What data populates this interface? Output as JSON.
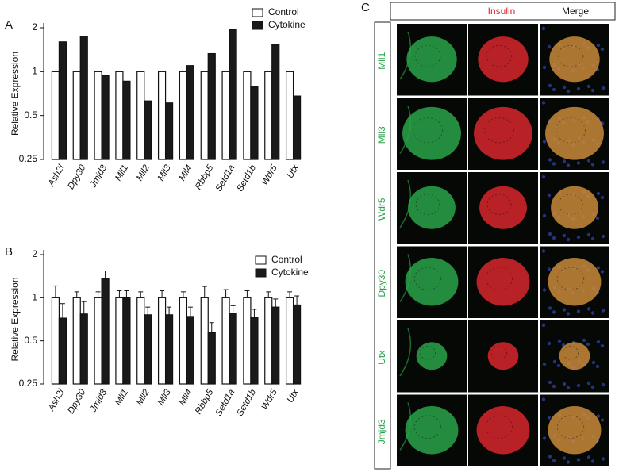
{
  "panel_labels": [
    "A",
    "B",
    "C"
  ],
  "chart_data": [
    {
      "type": "bar",
      "ylabel": "Relative Expression",
      "log_scale": true,
      "base": 2,
      "categories": [
        "Ash2l",
        "Dpy30",
        "Jmjd3",
        "Mll1",
        "Mll2",
        "Mll3",
        "Mll4",
        "Rbbp5",
        "Setd1a",
        "Setd1b",
        "Wdr5",
        "Utx"
      ],
      "series": [
        {
          "name": "Control",
          "color": "#ffffff",
          "values": [
            1,
            1,
            1,
            1,
            1,
            1,
            1,
            1,
            1,
            1,
            1,
            1
          ]
        },
        {
          "name": "Cytokine",
          "color": "#1a1a1a",
          "values": [
            1.6,
            1.75,
            0.94,
            0.86,
            0.63,
            0.61,
            1.1,
            1.33,
            1.95,
            0.79,
            1.54,
            0.68
          ]
        }
      ],
      "ylim": [
        0.25,
        2
      ],
      "yticks": [
        0.25,
        0.5,
        1,
        2
      ],
      "legend": "top-right"
    },
    {
      "type": "bar",
      "ylabel": "Relative Expression",
      "log_scale": true,
      "base": 2,
      "categories": [
        "Ash2l",
        "Dpy30",
        "Jmjd3",
        "Mll1",
        "Mll2",
        "Mll3",
        "Mll4",
        "Rbbp5",
        "Setd1a",
        "Setd1b",
        "Wdr5",
        "Utx"
      ],
      "series": [
        {
          "name": "Control",
          "color": "#ffffff",
          "values": [
            1,
            1,
            1,
            1,
            1,
            1,
            1,
            1,
            1,
            1,
            1,
            1
          ],
          "errors": [
            0.21,
            0.1,
            0.1,
            0.12,
            0.1,
            0.12,
            0.1,
            0.2,
            0.14,
            0.12,
            0.1,
            0.1
          ]
        },
        {
          "name": "Cytokine",
          "color": "#1a1a1a",
          "values": [
            0.72,
            0.77,
            1.37,
            1.0,
            0.76,
            0.76,
            0.74,
            0.57,
            0.78,
            0.73,
            0.86,
            0.89
          ],
          "errors": [
            0.19,
            0.17,
            0.17,
            0.12,
            0.1,
            0.1,
            0.12,
            0.1,
            0.1,
            0.1,
            0.12,
            0.14
          ]
        }
      ],
      "ylim": [
        0.25,
        2
      ],
      "yticks": [
        0.25,
        0.5,
        1,
        2
      ],
      "legend": "top-right"
    }
  ],
  "image_panel": {
    "columns": [
      "Insulin",
      "Merge"
    ],
    "rows": [
      "Mll1",
      "Mll3",
      "Wdr5",
      "Dpy30",
      "Utx",
      "Jmjd3"
    ]
  }
}
